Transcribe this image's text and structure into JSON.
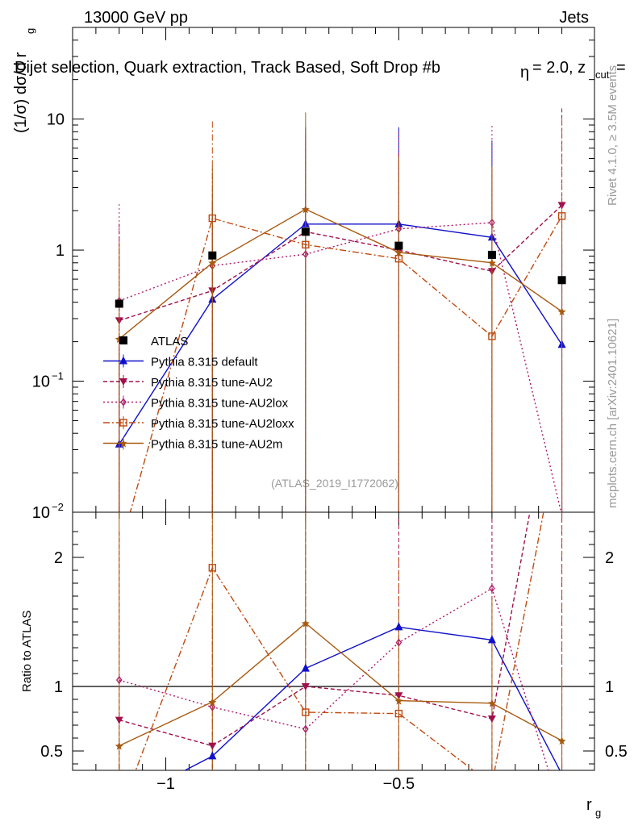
{
  "header": {
    "left": "13000 GeV pp",
    "right": "Jets",
    "subtitle": "Dijet selection, Quark extraction, Track Based, Soft Drop #b",
    "subtitle_tail": "= 2.0, z",
    "subtitle_cut": "cut",
    "subtitle_eq": "=",
    "subtitle_eta": "η"
  },
  "side": {
    "rivet": "Rivet 4.1.0, ≥ 3.5M events",
    "mcplots": "mcplots.cern.ch [arXiv:2401.10621]"
  },
  "watermark": "(ATLAS_2019_I1772062)",
  "colors": {
    "atlas": "#000000",
    "default": "#1010cc",
    "au2": "#a0104a",
    "au2lox": "#b01a6a",
    "au2loxx": "#c04a10",
    "au2m": "#a85a10"
  },
  "chart_data": {
    "type": "line",
    "xlabel": "r",
    "xlabel_sub": "g",
    "ylabel_main": "(1/σ) dσ/d r",
    "ylabel_main_sub": "g",
    "ylabel_ratio": "Ratio to ATLAS",
    "x": [
      -1.1,
      -0.9,
      -0.7,
      -0.5,
      -0.3,
      -0.15
    ],
    "xlim": [
      -1.2,
      -0.08
    ],
    "main_ylim": [
      0.01,
      50
    ],
    "main_yscale": "log",
    "main_ytick_labels": [
      "10",
      "1",
      "10",
      "10"
    ],
    "main_ytick_exps": [
      "",
      "",
      "−1",
      "−2"
    ],
    "main_yticks": [
      10,
      1,
      0.1,
      0.01
    ],
    "ratio_ylim": [
      0.35,
      2.35
    ],
    "ratio_yticks": [
      2,
      1,
      0.5
    ],
    "ratio_ytick_labels": [
      "2",
      "1",
      "0.5"
    ],
    "xticks": [
      -1,
      -0.5
    ],
    "xtick_labels": [
      "−1",
      "−0.5"
    ],
    "legend": {
      "position": "middle-left",
      "entries": [
        "ATLAS",
        "Pythia 8.315 default",
        "Pythia 8.315 tune-AU2",
        "Pythia 8.315 tune-AU2lox",
        "Pythia 8.315 tune-AU2loxx",
        "Pythia 8.315 tune-AU2m"
      ]
    },
    "series": [
      {
        "name": "ATLAS",
        "key": "atlas",
        "values": [
          0.39,
          0.91,
          1.38,
          1.08,
          0.92,
          0.59
        ]
      },
      {
        "name": "Pythia 8.315 default",
        "key": "default",
        "values": [
          0.033,
          0.42,
          1.58,
          1.58,
          1.25,
          0.19
        ]
      },
      {
        "name": "Pythia 8.315 tune-AU2",
        "key": "au2",
        "values": [
          0.29,
          0.49,
          1.38,
          1.0,
          0.69,
          2.2
        ]
      },
      {
        "name": "Pythia 8.315 tune-AU2lox",
        "key": "au2lox",
        "values": [
          0.41,
          0.76,
          0.93,
          1.45,
          1.62,
          0.0095
        ]
      },
      {
        "name": "Pythia 8.315 tune-AU2loxx",
        "key": "au2loxx",
        "values": [
          0.005,
          1.75,
          1.1,
          0.86,
          0.22,
          1.82
        ]
      },
      {
        "name": "Pythia 8.315 tune-AU2m",
        "key": "au2m",
        "values": [
          0.21,
          0.8,
          2.05,
          0.96,
          0.8,
          0.34
        ]
      }
    ],
    "ratios": [
      {
        "key": "default",
        "values": [
          0.085,
          0.46,
          1.14,
          1.46,
          1.36,
          0.32
        ]
      },
      {
        "key": "au2",
        "values": [
          0.74,
          0.54,
          1.0,
          0.93,
          0.75,
          3.7
        ]
      },
      {
        "key": "au2lox",
        "values": [
          1.05,
          0.84,
          0.67,
          1.34,
          1.76,
          0.016
        ]
      },
      {
        "key": "au2loxx",
        "values": [
          0.013,
          1.92,
          0.8,
          0.79,
          0.24,
          3.1
        ]
      },
      {
        "key": "au2m",
        "values": [
          0.54,
          0.88,
          1.49,
          0.89,
          0.87,
          0.58
        ]
      }
    ],
    "ratio_errors": [
      {
        "key": "au2",
        "hi": [
          2.2,
          1.5,
          2.3,
          2.3,
          2.3,
          2.35
        ],
        "lo": [
          0.35,
          0.35,
          0.35,
          0.35,
          0.35,
          0.35
        ]
      },
      {
        "key": "au2loxx",
        "hi": [
          0.35,
          2.35,
          2.3,
          2.0,
          0.35,
          2.35
        ],
        "lo": [
          0.35,
          0.35,
          0.35,
          0.35,
          0.35,
          0.35
        ]
      },
      {
        "key": "au2m",
        "hi": [
          2.35,
          2.35,
          2.35,
          1.6,
          1.7,
          1.13
        ],
        "lo": [
          0.35,
          0.35,
          0.35,
          0.35,
          0.35,
          0.35
        ]
      }
    ]
  }
}
